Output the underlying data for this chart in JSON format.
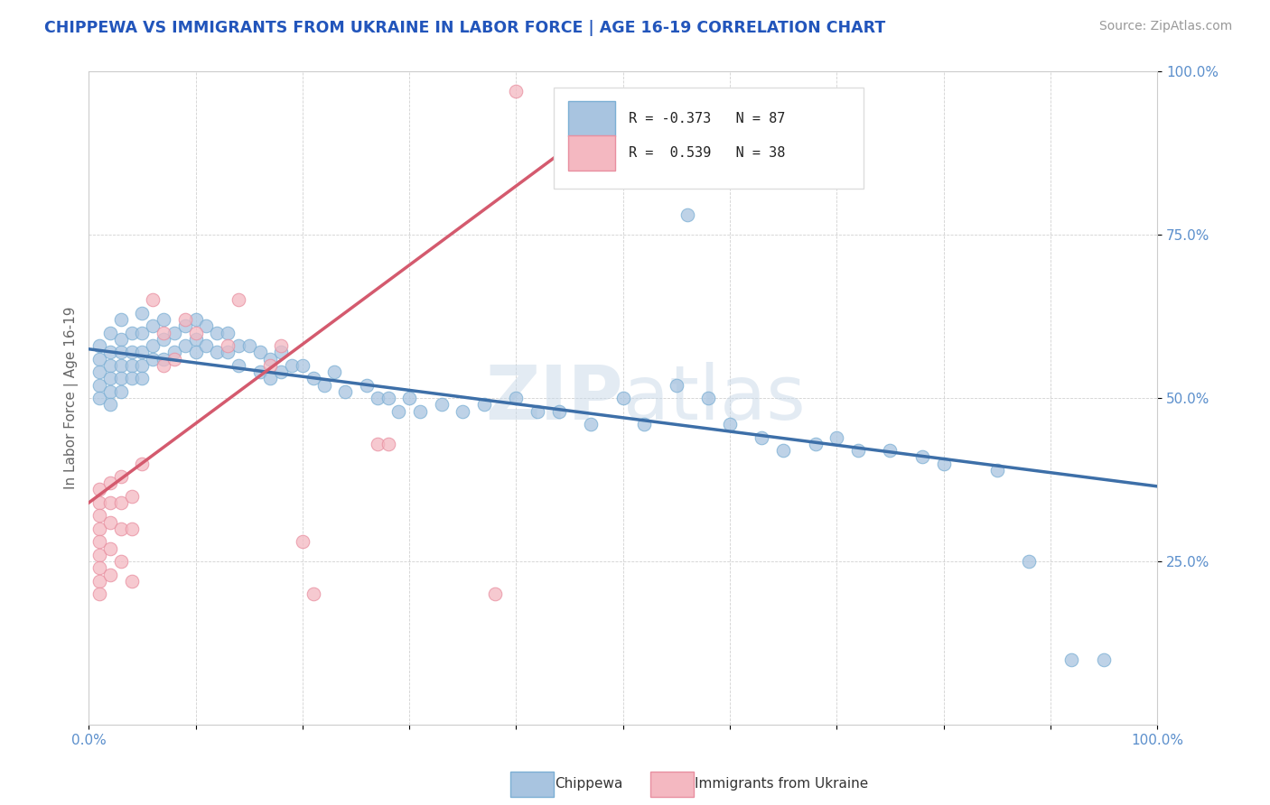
{
  "title": "CHIPPEWA VS IMMIGRANTS FROM UKRAINE IN LABOR FORCE | AGE 16-19 CORRELATION CHART",
  "source": "Source: ZipAtlas.com",
  "ylabel": "In Labor Force | Age 16-19",
  "xlim": [
    0.0,
    1.0
  ],
  "ylim": [
    0.0,
    1.0
  ],
  "blue_color": "#a8c4e0",
  "pink_color": "#f4b8c1",
  "blue_edge_color": "#7bafd4",
  "pink_edge_color": "#e88fa0",
  "blue_line_color": "#3d6fa8",
  "pink_line_color": "#d45a6e",
  "watermark_color": "#c8d8e8",
  "blue_trend": [
    0.0,
    1.0,
    0.575,
    0.365
  ],
  "pink_trend": [
    0.0,
    0.52,
    0.34,
    0.97
  ],
  "blue_scatter": [
    [
      0.01,
      0.58
    ],
    [
      0.01,
      0.56
    ],
    [
      0.01,
      0.54
    ],
    [
      0.01,
      0.52
    ],
    [
      0.01,
      0.5
    ],
    [
      0.02,
      0.6
    ],
    [
      0.02,
      0.57
    ],
    [
      0.02,
      0.55
    ],
    [
      0.02,
      0.53
    ],
    [
      0.02,
      0.51
    ],
    [
      0.02,
      0.49
    ],
    [
      0.03,
      0.62
    ],
    [
      0.03,
      0.59
    ],
    [
      0.03,
      0.57
    ],
    [
      0.03,
      0.55
    ],
    [
      0.03,
      0.53
    ],
    [
      0.03,
      0.51
    ],
    [
      0.04,
      0.6
    ],
    [
      0.04,
      0.57
    ],
    [
      0.04,
      0.55
    ],
    [
      0.04,
      0.53
    ],
    [
      0.05,
      0.63
    ],
    [
      0.05,
      0.6
    ],
    [
      0.05,
      0.57
    ],
    [
      0.05,
      0.55
    ],
    [
      0.05,
      0.53
    ],
    [
      0.06,
      0.61
    ],
    [
      0.06,
      0.58
    ],
    [
      0.06,
      0.56
    ],
    [
      0.07,
      0.62
    ],
    [
      0.07,
      0.59
    ],
    [
      0.07,
      0.56
    ],
    [
      0.08,
      0.6
    ],
    [
      0.08,
      0.57
    ],
    [
      0.09,
      0.61
    ],
    [
      0.09,
      0.58
    ],
    [
      0.1,
      0.62
    ],
    [
      0.1,
      0.59
    ],
    [
      0.1,
      0.57
    ],
    [
      0.11,
      0.61
    ],
    [
      0.11,
      0.58
    ],
    [
      0.12,
      0.6
    ],
    [
      0.12,
      0.57
    ],
    [
      0.13,
      0.6
    ],
    [
      0.13,
      0.57
    ],
    [
      0.14,
      0.58
    ],
    [
      0.14,
      0.55
    ],
    [
      0.15,
      0.58
    ],
    [
      0.16,
      0.57
    ],
    [
      0.16,
      0.54
    ],
    [
      0.17,
      0.56
    ],
    [
      0.17,
      0.53
    ],
    [
      0.18,
      0.57
    ],
    [
      0.18,
      0.54
    ],
    [
      0.19,
      0.55
    ],
    [
      0.2,
      0.55
    ],
    [
      0.21,
      0.53
    ],
    [
      0.22,
      0.52
    ],
    [
      0.23,
      0.54
    ],
    [
      0.24,
      0.51
    ],
    [
      0.26,
      0.52
    ],
    [
      0.27,
      0.5
    ],
    [
      0.28,
      0.5
    ],
    [
      0.29,
      0.48
    ],
    [
      0.3,
      0.5
    ],
    [
      0.31,
      0.48
    ],
    [
      0.33,
      0.49
    ],
    [
      0.35,
      0.48
    ],
    [
      0.37,
      0.49
    ],
    [
      0.4,
      0.5
    ],
    [
      0.42,
      0.48
    ],
    [
      0.44,
      0.48
    ],
    [
      0.47,
      0.46
    ],
    [
      0.5,
      0.5
    ],
    [
      0.52,
      0.46
    ],
    [
      0.55,
      0.52
    ],
    [
      0.58,
      0.5
    ],
    [
      0.6,
      0.46
    ],
    [
      0.63,
      0.44
    ],
    [
      0.65,
      0.42
    ],
    [
      0.68,
      0.43
    ],
    [
      0.7,
      0.44
    ],
    [
      0.72,
      0.42
    ],
    [
      0.75,
      0.42
    ],
    [
      0.78,
      0.41
    ],
    [
      0.8,
      0.4
    ],
    [
      0.85,
      0.39
    ],
    [
      0.88,
      0.25
    ],
    [
      0.92,
      0.1
    ],
    [
      0.95,
      0.1
    ],
    [
      0.56,
      0.78
    ]
  ],
  "pink_scatter": [
    [
      0.01,
      0.36
    ],
    [
      0.01,
      0.34
    ],
    [
      0.01,
      0.32
    ],
    [
      0.01,
      0.3
    ],
    [
      0.01,
      0.28
    ],
    [
      0.01,
      0.26
    ],
    [
      0.01,
      0.24
    ],
    [
      0.01,
      0.22
    ],
    [
      0.01,
      0.2
    ],
    [
      0.02,
      0.37
    ],
    [
      0.02,
      0.34
    ],
    [
      0.02,
      0.31
    ],
    [
      0.02,
      0.27
    ],
    [
      0.02,
      0.23
    ],
    [
      0.03,
      0.38
    ],
    [
      0.03,
      0.34
    ],
    [
      0.03,
      0.3
    ],
    [
      0.03,
      0.25
    ],
    [
      0.04,
      0.35
    ],
    [
      0.04,
      0.3
    ],
    [
      0.04,
      0.22
    ],
    [
      0.05,
      0.4
    ],
    [
      0.06,
      0.65
    ],
    [
      0.07,
      0.6
    ],
    [
      0.07,
      0.55
    ],
    [
      0.08,
      0.56
    ],
    [
      0.09,
      0.62
    ],
    [
      0.1,
      0.6
    ],
    [
      0.13,
      0.58
    ],
    [
      0.14,
      0.65
    ],
    [
      0.17,
      0.55
    ],
    [
      0.18,
      0.58
    ],
    [
      0.2,
      0.28
    ],
    [
      0.21,
      0.2
    ],
    [
      0.27,
      0.43
    ],
    [
      0.28,
      0.43
    ],
    [
      0.38,
      0.2
    ],
    [
      0.4,
      0.97
    ]
  ]
}
